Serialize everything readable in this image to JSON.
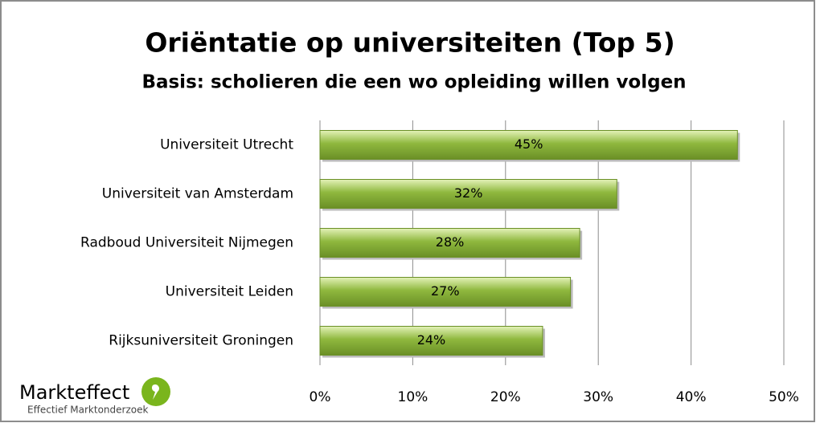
{
  "chart_data": {
    "type": "bar",
    "orientation": "horizontal",
    "title": "Oriëntatie op universiteiten (Top 5)",
    "subtitle": "Basis: scholieren die een wo opleiding willen volgen",
    "categories": [
      "Universiteit Utrecht",
      "Universiteit van Amsterdam",
      "Radboud Universiteit Nijmegen",
      "Universiteit Leiden",
      "Rijksuniversiteit Groningen"
    ],
    "values": [
      45,
      32,
      28,
      27,
      24
    ],
    "value_labels": [
      "45%",
      "32%",
      "28%",
      "27%",
      "24%"
    ],
    "color": "#8fb83e",
    "xlim": [
      0,
      50
    ],
    "xticks": [
      {
        "value": 0,
        "label": "0%"
      },
      {
        "value": 10,
        "label": "10%"
      },
      {
        "value": 20,
        "label": "20%"
      },
      {
        "value": 30,
        "label": "30%"
      },
      {
        "value": 40,
        "label": "40%"
      },
      {
        "value": 50,
        "label": "50%"
      }
    ],
    "grid": true
  },
  "logo": {
    "name": "Markteffect",
    "tagline": "Effectief Marktonderzoek"
  }
}
